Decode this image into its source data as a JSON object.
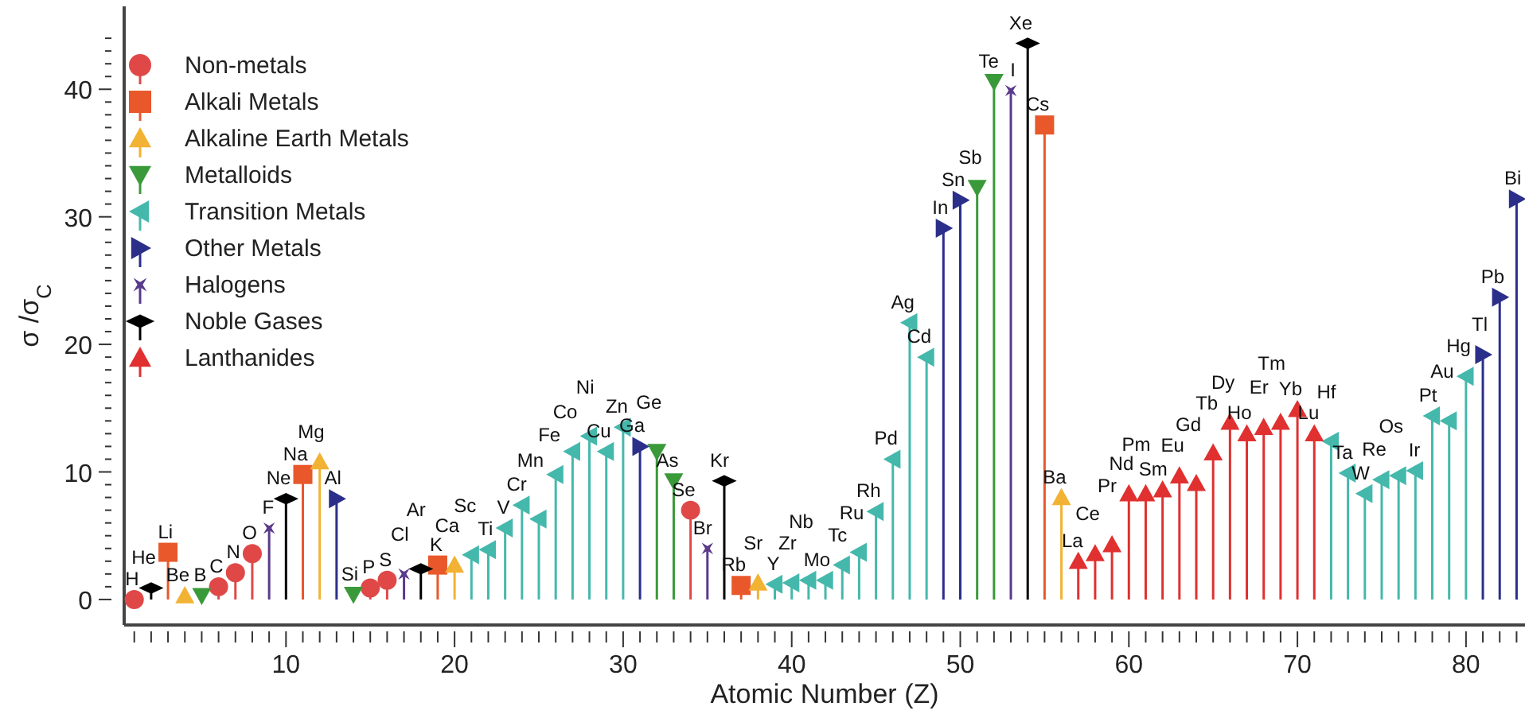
{
  "chart_data": {
    "type": "lollipop",
    "xlabel": "Atomic Number (Z)",
    "ylabel": "σ /σ$_{C}$",
    "legend": "top left",
    "xlim": [
      0.4,
      83.5
    ],
    "ylim": [
      -2,
      46.5
    ],
    "xticks": [
      {
        "value": 1,
        "label": null
      },
      {
        "value": 2,
        "label": null
      },
      {
        "value": 3,
        "label": null
      },
      {
        "value": 4,
        "label": null
      },
      {
        "value": 5,
        "label": null
      },
      {
        "value": 6,
        "label": null
      },
      {
        "value": 7,
        "label": null
      },
      {
        "value": 8,
        "label": null
      },
      {
        "value": 9,
        "label": null
      },
      10,
      {
        "value": 11,
        "label": null
      },
      {
        "value": 12,
        "label": null
      },
      {
        "value": 13,
        "label": null
      },
      {
        "value": 14,
        "label": null
      },
      {
        "value": 15,
        "label": null
      },
      {
        "value": 16,
        "label": null
      },
      {
        "value": 17,
        "label": null
      },
      {
        "value": 18,
        "label": null
      },
      {
        "value": 19,
        "label": null
      },
      20,
      {
        "value": 21,
        "label": null
      },
      {
        "value": 22,
        "label": null
      },
      {
        "value": 23,
        "label": null
      },
      {
        "value": 24,
        "label": null
      },
      {
        "value": 25,
        "label": null
      },
      {
        "value": 26,
        "label": null
      },
      {
        "value": 27,
        "label": null
      },
      {
        "value": 28,
        "label": null
      },
      {
        "value": 29,
        "label": null
      },
      30,
      {
        "value": 31,
        "label": null
      },
      {
        "value": 32,
        "label": null
      },
      {
        "value": 33,
        "label": null
      },
      {
        "value": 34,
        "label": null
      },
      {
        "value": 35,
        "label": null
      },
      {
        "value": 36,
        "label": null
      },
      {
        "value": 37,
        "label": null
      },
      {
        "value": 38,
        "label": null
      },
      {
        "value": 39,
        "label": null
      },
      40,
      {
        "value": 41,
        "label": null
      },
      {
        "value": 42,
        "label": null
      },
      {
        "value": 43,
        "label": null
      },
      {
        "value": 44,
        "label": null
      },
      {
        "value": 45,
        "label": null
      },
      {
        "value": 46,
        "label": null
      },
      {
        "value": 47,
        "label": null
      },
      {
        "value": 48,
        "label": null
      },
      {
        "value": 49,
        "label": null
      },
      50,
      {
        "value": 51,
        "label": null
      },
      {
        "value": 52,
        "label": null
      },
      {
        "value": 53,
        "label": null
      },
      {
        "value": 54,
        "label": null
      },
      {
        "value": 55,
        "label": null
      },
      {
        "value": 56,
        "label": null
      },
      {
        "value": 57,
        "label": null
      },
      {
        "value": 58,
        "label": null
      },
      {
        "value": 59,
        "label": null
      },
      60,
      {
        "value": 61,
        "label": null
      },
      {
        "value": 62,
        "label": null
      },
      {
        "value": 63,
        "label": null
      },
      {
        "value": 64,
        "label": null
      },
      {
        "value": 65,
        "label": null
      },
      {
        "value": 66,
        "label": null
      },
      {
        "value": 67,
        "label": null
      },
      {
        "value": 68,
        "label": null
      },
      {
        "value": 69,
        "label": null
      },
      70,
      {
        "value": 71,
        "label": null
      },
      {
        "value": 72,
        "label": null
      },
      {
        "value": 73,
        "label": null
      },
      {
        "value": 74,
        "label": null
      },
      {
        "value": 75,
        "label": null
      },
      {
        "value": 76,
        "label": null
      },
      {
        "value": 77,
        "label": null
      },
      {
        "value": 78,
        "label": null
      },
      {
        "value": 79,
        "label": null
      },
      80,
      {
        "value": 81,
        "label": null
      },
      {
        "value": 82,
        "label": null
      },
      {
        "value": 83,
        "label": null
      }
    ],
    "yticks": [
      0,
      {
        "value": 1,
        "label": null
      },
      {
        "value": 2,
        "label": null
      },
      {
        "value": 3,
        "label": null
      },
      {
        "value": 4,
        "label": null
      },
      {
        "value": 5,
        "label": null
      },
      {
        "value": 6,
        "label": null
      },
      {
        "value": 7,
        "label": null
      },
      {
        "value": 8,
        "label": null
      },
      {
        "value": 9,
        "label": null
      },
      10,
      {
        "value": 11,
        "label": null
      },
      {
        "value": 12,
        "label": null
      },
      {
        "value": 13,
        "label": null
      },
      {
        "value": 14,
        "label": null
      },
      {
        "value": 15,
        "label": null
      },
      {
        "value": 16,
        "label": null
      },
      {
        "value": 17,
        "label": null
      },
      {
        "value": 18,
        "label": null
      },
      {
        "value": 19,
        "label": null
      },
      20,
      {
        "value": 21,
        "label": null
      },
      {
        "value": 22,
        "label": null
      },
      {
        "value": 23,
        "label": null
      },
      {
        "value": 24,
        "label": null
      },
      {
        "value": 25,
        "label": null
      },
      {
        "value": 26,
        "label": null
      },
      {
        "value": 27,
        "label": null
      },
      {
        "value": 28,
        "label": null
      },
      {
        "value": 29,
        "label": null
      },
      30,
      {
        "value": 31,
        "label": null
      },
      {
        "value": 32,
        "label": null
      },
      {
        "value": 33,
        "label": null
      },
      {
        "value": 34,
        "label": null
      },
      {
        "value": 35,
        "label": null
      },
      {
        "value": 36,
        "label": null
      },
      {
        "value": 37,
        "label": null
      },
      {
        "value": 38,
        "label": null
      },
      {
        "value": 39,
        "label": null
      },
      40,
      {
        "value": 41,
        "label": null
      },
      {
        "value": 42,
        "label": null
      },
      {
        "value": 43,
        "label": null
      },
      {
        "value": 44,
        "label": null
      }
    ],
    "series": [
      {
        "name": "Non-metals",
        "color": "#e04848",
        "marker": "circle",
        "x": [
          1,
          6,
          7,
          8,
          15,
          16,
          34
        ],
        "values": [
          0,
          1.0,
          2.1,
          3.6,
          0.9,
          1.5,
          7.0
        ]
      },
      {
        "name": "Alkali Metals",
        "color": "#e8582a",
        "marker": "square",
        "x": [
          3,
          11,
          19,
          37,
          55
        ],
        "values": [
          3.7,
          9.8,
          2.7,
          1.1,
          37.2
        ]
      },
      {
        "name": "Alkaline Earth Metals",
        "color": "#f2b233",
        "marker": "triangle",
        "x": [
          4,
          12,
          20,
          38,
          56
        ],
        "values": [
          0.3,
          10.8,
          2.7,
          1.3,
          8.0
        ]
      },
      {
        "name": "Metalloids",
        "color": "#3a9a3a",
        "marker": "triangle-down",
        "x": [
          5,
          14,
          32,
          33,
          51,
          52
        ],
        "values": [
          0.3,
          0.4,
          11.6,
          9.3,
          32.3,
          40.6
        ]
      },
      {
        "name": "Transition Metals",
        "color": "#45b8ac",
        "marker": "triangle-left",
        "x": [
          21,
          22,
          23,
          24,
          25,
          26,
          27,
          28,
          29,
          30,
          39,
          40,
          41,
          42,
          43,
          44,
          45,
          46,
          47,
          48,
          72,
          73,
          74,
          75,
          76,
          77,
          78,
          79,
          80
        ],
        "values": [
          3.5,
          3.9,
          5.6,
          7.4,
          6.3,
          9.8,
          11.6,
          12.8,
          11.6,
          13.5,
          1.2,
          1.3,
          1.5,
          1.5,
          2.7,
          3.7,
          6.9,
          11.0,
          21.7,
          19.0,
          12.4,
          9.9,
          8.3,
          9.4,
          9.7,
          10.1,
          14.4,
          14.0,
          17.5
        ]
      },
      {
        "name": "Other Metals",
        "color": "#2b2f8a",
        "marker": "triangle-right",
        "x": [
          13,
          31,
          49,
          50,
          81,
          82,
          83
        ],
        "values": [
          7.9,
          12.0,
          29.1,
          31.3,
          19.2,
          23.7,
          31.4
        ]
      },
      {
        "name": "Halogens",
        "color": "#5a3a8a",
        "marker": "cross",
        "x": [
          9,
          17,
          35,
          53
        ],
        "values": [
          5.6,
          2.0,
          4.0,
          39.9
        ]
      },
      {
        "name": "Noble Gases",
        "color": "#000000",
        "marker": "diamond",
        "x": [
          2,
          10,
          18,
          36,
          54
        ],
        "values": [
          0.9,
          7.9,
          2.4,
          9.3,
          43.6
        ]
      },
      {
        "name": "Lanthanides",
        "color": "#e03030",
        "marker": "triangle",
        "x": [
          57,
          58,
          59,
          60,
          61,
          62,
          63,
          64,
          65,
          66,
          67,
          68,
          69,
          70,
          71
        ],
        "values": [
          3.0,
          3.6,
          4.3,
          8.3,
          8.3,
          8.6,
          9.7,
          9.1,
          11.5,
          13.9,
          13.0,
          13.5,
          13.9,
          14.9,
          13.0
        ]
      }
    ],
    "annotations": [
      {
        "text": "H",
        "x": 1,
        "y": 0
      },
      {
        "text": "He",
        "x": 2,
        "y": 0.9
      },
      {
        "text": "Li",
        "x": 3,
        "y": 3.7
      },
      {
        "text": "Be",
        "x": 4,
        "y": 0.3
      },
      {
        "text": "B",
        "x": 5,
        "y": 0.3
      },
      {
        "text": "C",
        "x": 6,
        "y": 1.0
      },
      {
        "text": "N",
        "x": 7,
        "y": 2.1
      },
      {
        "text": "O",
        "x": 8,
        "y": 3.6
      },
      {
        "text": "F",
        "x": 9,
        "y": 5.6
      },
      {
        "text": "Ne",
        "x": 10,
        "y": 7.9
      },
      {
        "text": "Na",
        "x": 11,
        "y": 9.8
      },
      {
        "text": "Mg",
        "x": 12,
        "y": 10.8
      },
      {
        "text": "Al",
        "x": 13,
        "y": 7.9
      },
      {
        "text": "Si",
        "x": 14,
        "y": 0.4
      },
      {
        "text": "P",
        "x": 15,
        "y": 0.9
      },
      {
        "text": "S",
        "x": 16,
        "y": 1.5
      },
      {
        "text": "Cl",
        "x": 17,
        "y": 2.0
      },
      {
        "text": "Ar",
        "x": 18,
        "y": 2.4
      },
      {
        "text": "K",
        "x": 19,
        "y": 2.7
      },
      {
        "text": "Ca",
        "x": 20,
        "y": 2.7
      },
      {
        "text": "Sc",
        "x": 21,
        "y": 3.5
      },
      {
        "text": "Ti",
        "x": 22,
        "y": 3.9
      },
      {
        "text": "V",
        "x": 23,
        "y": 5.6
      },
      {
        "text": "Cr",
        "x": 24,
        "y": 7.4
      },
      {
        "text": "Mn",
        "x": 25,
        "y": 6.3
      },
      {
        "text": "Fe",
        "x": 26,
        "y": 9.8
      },
      {
        "text": "Co",
        "x": 27,
        "y": 11.6
      },
      {
        "text": "Ni",
        "x": 28,
        "y": 12.8
      },
      {
        "text": "Cu",
        "x": 29,
        "y": 11.6
      },
      {
        "text": "Zn",
        "x": 30,
        "y": 13.5
      },
      {
        "text": "Ga",
        "x": 31,
        "y": 12.0
      },
      {
        "text": "Ge",
        "x": 32,
        "y": 11.6
      },
      {
        "text": "As",
        "x": 33,
        "y": 9.3
      },
      {
        "text": "Se",
        "x": 34,
        "y": 7.0
      },
      {
        "text": "Br",
        "x": 35,
        "y": 4.0
      },
      {
        "text": "Kr",
        "x": 36,
        "y": 9.3
      },
      {
        "text": "Rb",
        "x": 37,
        "y": 1.1
      },
      {
        "text": "Sr",
        "x": 38,
        "y": 1.3
      },
      {
        "text": "Y",
        "x": 39,
        "y": 1.2
      },
      {
        "text": "Zr",
        "x": 40,
        "y": 1.3
      },
      {
        "text": "Nb",
        "x": 41,
        "y": 1.5
      },
      {
        "text": "Mo",
        "x": 42,
        "y": 1.5
      },
      {
        "text": "Tc",
        "x": 43,
        "y": 2.7
      },
      {
        "text": "Ru",
        "x": 44,
        "y": 3.7
      },
      {
        "text": "Rh",
        "x": 45,
        "y": 6.9
      },
      {
        "text": "Pd",
        "x": 46,
        "y": 11.0
      },
      {
        "text": "Ag",
        "x": 47,
        "y": 21.7
      },
      {
        "text": "Cd",
        "x": 48,
        "y": 19.0
      },
      {
        "text": "In",
        "x": 49,
        "y": 29.1
      },
      {
        "text": "Sn",
        "x": 50,
        "y": 31.3
      },
      {
        "text": "Sb",
        "x": 51,
        "y": 32.3
      },
      {
        "text": "Te",
        "x": 52,
        "y": 40.6
      },
      {
        "text": "I",
        "x": 53,
        "y": 39.9
      },
      {
        "text": "Xe",
        "x": 54,
        "y": 43.6
      },
      {
        "text": "Cs",
        "x": 55,
        "y": 37.2
      },
      {
        "text": "Ba",
        "x": 56,
        "y": 8.0
      },
      {
        "text": "La",
        "x": 57,
        "y": 3.0
      },
      {
        "text": "Ce",
        "x": 58,
        "y": 3.6
      },
      {
        "text": "Pr",
        "x": 59,
        "y": 4.3
      },
      {
        "text": "Nd",
        "x": 60,
        "y": 8.3
      },
      {
        "text": "Pm",
        "x": 61,
        "y": 8.3
      },
      {
        "text": "Sm",
        "x": 62,
        "y": 8.6
      },
      {
        "text": "Eu",
        "x": 63,
        "y": 9.7
      },
      {
        "text": "Gd",
        "x": 64,
        "y": 9.1
      },
      {
        "text": "Tb",
        "x": 65,
        "y": 11.5
      },
      {
        "text": "Dy",
        "x": 66,
        "y": 13.9
      },
      {
        "text": "Ho",
        "x": 67,
        "y": 13.0
      },
      {
        "text": "Er",
        "x": 68,
        "y": 13.5
      },
      {
        "text": "Tm",
        "x": 69,
        "y": 13.9
      },
      {
        "text": "Yb",
        "x": 70,
        "y": 14.9
      },
      {
        "text": "Lu",
        "x": 71,
        "y": 13.0
      },
      {
        "text": "Hf",
        "x": 72,
        "y": 12.4
      },
      {
        "text": "Ta",
        "x": 73,
        "y": 9.9
      },
      {
        "text": "W",
        "x": 74,
        "y": 8.3
      },
      {
        "text": "Re",
        "x": 75,
        "y": 9.4
      },
      {
        "text": "Os",
        "x": 76,
        "y": 9.7
      },
      {
        "text": "Ir",
        "x": 77,
        "y": 10.1
      },
      {
        "text": "Pt",
        "x": 78,
        "y": 14.4
      },
      {
        "text": "Au",
        "x": 79,
        "y": 14.0
      },
      {
        "text": "Hg",
        "x": 80,
        "y": 17.5
      },
      {
        "text": "Tl",
        "x": 81,
        "y": 19.2
      },
      {
        "text": "Pb",
        "x": 82,
        "y": 23.7
      },
      {
        "text": "Bi",
        "x": 83,
        "y": 31.4
      }
    ]
  }
}
